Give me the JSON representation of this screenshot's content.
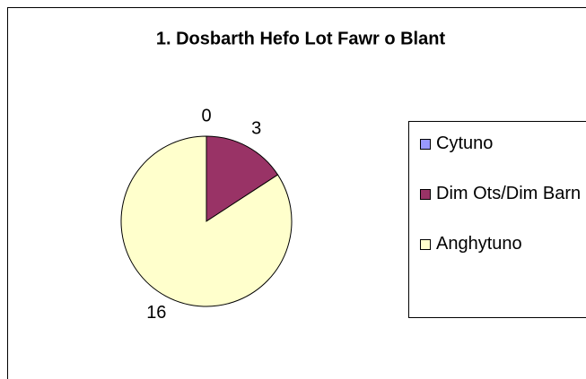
{
  "chart_data": {
    "type": "pie",
    "title": "1. Dosbarth Hefo Lot Fawr o Blant",
    "categories": [
      "Cytuno",
      "Dim Ots/Dim Barn",
      "Anghytuno"
    ],
    "values": [
      0,
      3,
      16
    ],
    "colors": [
      "#9999ff",
      "#993366",
      "#ffffcc"
    ],
    "legend": "right"
  }
}
